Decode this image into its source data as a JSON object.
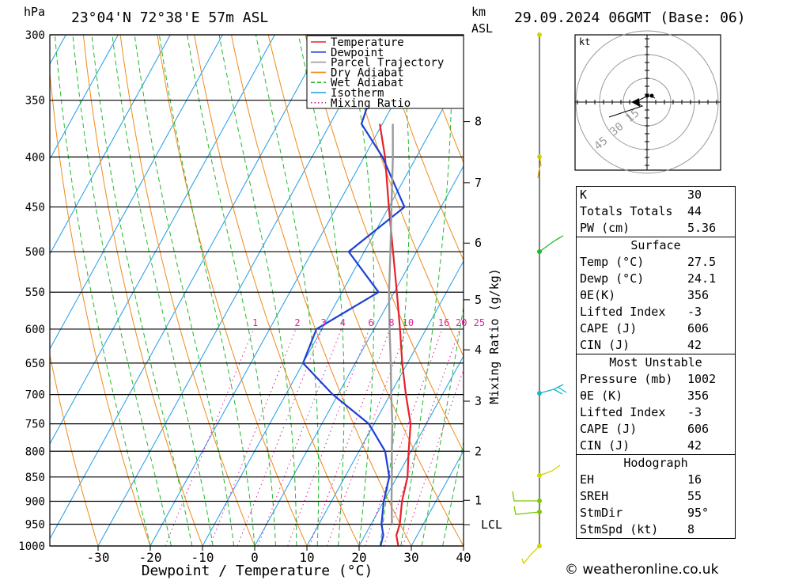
{
  "header": {
    "location": "23°04'N 72°38'E 57m ASL",
    "datetime": "29.09.2024 06GMT (Base: 06)",
    "pressure_unit": "hPa",
    "height_unit_top": "km",
    "height_unit_bottom": "ASL"
  },
  "footer": {
    "credit": "© weatheronline.co.uk"
  },
  "colors": {
    "temperature": "#e8202a",
    "dewpoint": "#1c3fd6",
    "parcel": "#9a9a9a",
    "dry_adiabat": "#f08a1a",
    "wet_adiabat": "#1fb82a",
    "isotherm": "#1e9be8",
    "mixing_ratio": "#e0209a"
  },
  "chart_data": {
    "type": "line",
    "title": "23°04'N 72°38'E 57m ASL",
    "xlabel": "Dewpoint / Temperature (°C)",
    "ylabel": "hPa",
    "xlim": [
      -40,
      40
    ],
    "x_ticks": [
      "-30",
      "-20",
      "-10",
      "0",
      "10",
      "20",
      "30",
      "40"
    ],
    "x_tick_values": [
      -30,
      -20,
      -10,
      0,
      10,
      20,
      30,
      40
    ],
    "pressure_levels": [
      300,
      350,
      400,
      450,
      500,
      550,
      600,
      650,
      700,
      750,
      800,
      850,
      900,
      950,
      1000
    ],
    "pressure_labels": [
      "300",
      "350",
      "400",
      "450",
      "500",
      "550",
      "600",
      "650",
      "700",
      "750",
      "800",
      "850",
      "900",
      "950",
      "1000"
    ],
    "height_km_labels": [
      {
        "label": "8",
        "p": 368
      },
      {
        "label": "7",
        "p": 425
      },
      {
        "label": "6",
        "p": 490
      },
      {
        "label": "5",
        "p": 560
      },
      {
        "label": "4",
        "p": 630
      },
      {
        "label": "3",
        "p": 711
      },
      {
        "label": "2",
        "p": 800
      },
      {
        "label": "1",
        "p": 898
      },
      {
        "label": "LCL",
        "p": 951
      }
    ],
    "mixing_ratio_axis_label": "Mixing Ratio (g/kg)",
    "mixing_ratio_labels": [
      "1",
      "2",
      "3",
      "4",
      "6",
      "8",
      "10",
      "16",
      "20",
      "25"
    ],
    "mixing_ratio_values": [
      1,
      2,
      3,
      4,
      6,
      8,
      10,
      16,
      20,
      25
    ],
    "legend": [
      "Temperature",
      "Dewpoint",
      "Parcel Trajectory",
      "Dry Adiabat",
      "Wet Adiabat",
      "Isotherm",
      "Mixing Ratio"
    ],
    "legend_position": "top-right",
    "series": [
      {
        "name": "Temperature",
        "points": [
          [
            1000,
            27.5
          ],
          [
            975,
            26.0
          ],
          [
            950,
            25.5
          ],
          [
            900,
            23.5
          ],
          [
            850,
            22.0
          ],
          [
            800,
            19.5
          ],
          [
            750,
            17.0
          ],
          [
            700,
            13.0
          ],
          [
            650,
            9.0
          ],
          [
            600,
            5.0
          ],
          [
            550,
            0.5
          ],
          [
            500,
            -4.5
          ],
          [
            450,
            -10.0
          ],
          [
            400,
            -16.0
          ],
          [
            370,
            -20.5
          ]
        ]
      },
      {
        "name": "Dewpoint",
        "points": [
          [
            1000,
            24.1
          ],
          [
            975,
            23.5
          ],
          [
            950,
            22.0
          ],
          [
            900,
            20.0
          ],
          [
            850,
            18.5
          ],
          [
            800,
            15.0
          ],
          [
            750,
            9.0
          ],
          [
            700,
            -1.0
          ],
          [
            650,
            -10.0
          ],
          [
            600,
            -11.0
          ],
          [
            550,
            -3.0
          ],
          [
            500,
            -13.0
          ],
          [
            450,
            -7.0
          ],
          [
            400,
            -16.5
          ],
          [
            370,
            -24.0
          ],
          [
            330,
            -26.0
          ],
          [
            300,
            -32.0
          ]
        ]
      },
      {
        "name": "Parcel Trajectory",
        "points": [
          [
            950,
            24.0
          ],
          [
            900,
            21.5
          ],
          [
            850,
            19.0
          ],
          [
            800,
            16.3
          ],
          [
            750,
            13.5
          ],
          [
            700,
            10.2
          ],
          [
            650,
            6.8
          ],
          [
            600,
            3.0
          ],
          [
            550,
            -1.0
          ],
          [
            500,
            -5.0
          ],
          [
            450,
            -9.5
          ],
          [
            400,
            -14.5
          ],
          [
            370,
            -18.0
          ]
        ]
      }
    ]
  },
  "hodograph": {
    "unit_label": "kt",
    "ring_labels": [
      "15",
      "30",
      "45"
    ]
  },
  "indices": {
    "basic": [
      {
        "label": "K",
        "value": "30"
      },
      {
        "label": "Totals Totals",
        "value": "44"
      },
      {
        "label": "PW (cm)",
        "value": "5.36"
      }
    ],
    "surface": {
      "title": "Surface",
      "rows": [
        {
          "label": "Temp (°C)",
          "value": "27.5"
        },
        {
          "label": "Dewp (°C)",
          "value": "24.1"
        },
        {
          "label": "θE(K)",
          "value": "356"
        },
        {
          "label": "Lifted Index",
          "value": "-3"
        },
        {
          "label": "CAPE (J)",
          "value": "606"
        },
        {
          "label": "CIN (J)",
          "value": "42"
        }
      ]
    },
    "most_unstable": {
      "title": "Most Unstable",
      "rows": [
        {
          "label": "Pressure (mb)",
          "value": "1002"
        },
        {
          "label": "θE (K)",
          "value": "356"
        },
        {
          "label": "Lifted Index",
          "value": "-3"
        },
        {
          "label": "CAPE (J)",
          "value": "606"
        },
        {
          "label": "CIN (J)",
          "value": "42"
        }
      ]
    },
    "hodograph": {
      "title": "Hodograph",
      "rows": [
        {
          "label": "EH",
          "value": "16"
        },
        {
          "label": "SREH",
          "value": "55"
        },
        {
          "label": "StmDir",
          "value": "95°"
        },
        {
          "label": "StmSpd (kt)",
          "value": "8"
        }
      ]
    }
  }
}
